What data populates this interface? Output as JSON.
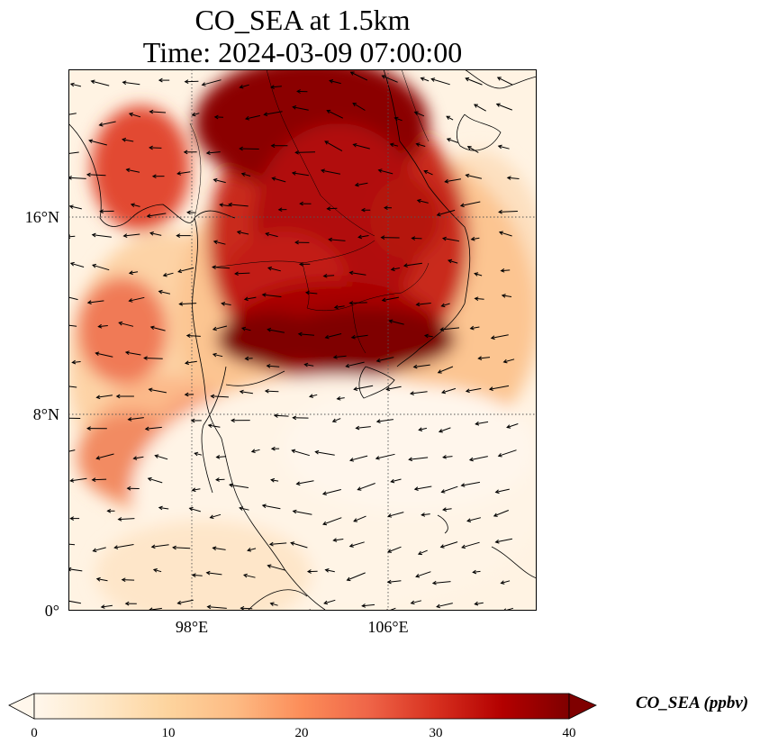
{
  "title": {
    "line1": "CO_SEA at 1.5km",
    "line2": "Time: 2024-03-09 07:00:00"
  },
  "map": {
    "projection": "PlateCarree",
    "extent_lon": [
      93,
      112
    ],
    "extent_lat": [
      0,
      22
    ],
    "lat_ticks": [
      {
        "value": 16,
        "label": "16°N"
      },
      {
        "value": 8,
        "label": "8°N"
      },
      {
        "value": 0,
        "label": "0°"
      }
    ],
    "lon_ticks": [
      {
        "value": 98,
        "label": "98°E"
      },
      {
        "value": 106,
        "label": "106°E"
      }
    ],
    "gridlines": "dotted",
    "field_description": "CO concentration, highest over mainland Southeast Asia; wind vectors overlaid",
    "colormap": "OrRd"
  },
  "colorbar": {
    "label": "CO_SEA (ppbv)",
    "min": 0,
    "max": 40,
    "extend": "both",
    "ticks": [
      {
        "value": 0,
        "label": "0"
      },
      {
        "value": 10,
        "label": "10"
      },
      {
        "value": 20,
        "label": "20"
      },
      {
        "value": 30,
        "label": "30"
      },
      {
        "value": 40,
        "label": "40"
      }
    ],
    "colors": [
      "#fff7ec",
      "#fee8c8",
      "#fdd49e",
      "#fdbb84",
      "#fc8d59",
      "#ef6548",
      "#d7301f",
      "#b30000",
      "#7f0000"
    ]
  }
}
